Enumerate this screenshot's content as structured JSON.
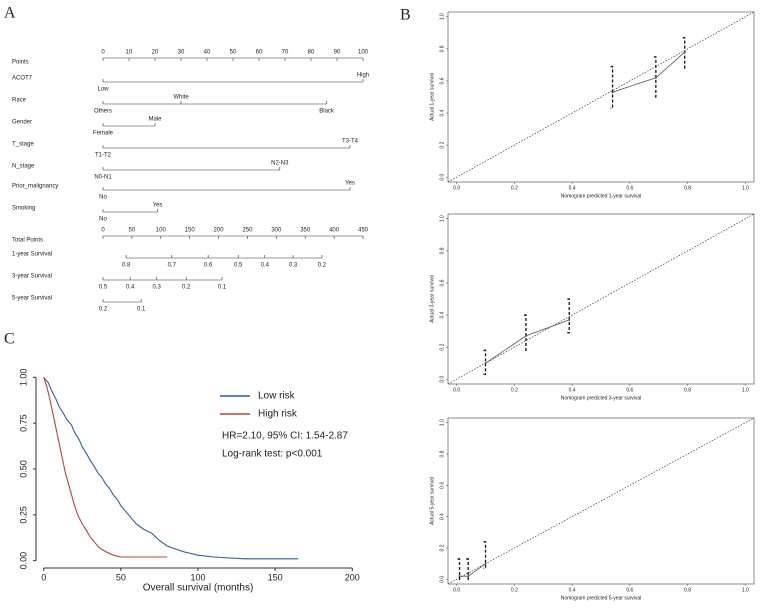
{
  "chart_data": [
    {
      "type": "nomogram",
      "panel": "A",
      "points_axis": {
        "name": "Points",
        "lim": [
          0,
          100
        ],
        "ticks": [
          0,
          10,
          20,
          30,
          40,
          50,
          60,
          70,
          80,
          90,
          100
        ]
      },
      "total_axis": {
        "name": "Total Points",
        "lim": [
          0,
          450
        ],
        "ticks": [
          0,
          50,
          100,
          150,
          200,
          250,
          300,
          350,
          400,
          450
        ]
      },
      "rows": [
        {
          "name": "ACOT7",
          "axis": "points",
          "ticks": [
            {
              "value": 0,
              "label": "Low"
            },
            {
              "value": 100,
              "label": "High"
            }
          ]
        },
        {
          "name": "Race",
          "axis": "points",
          "ticks": [
            {
              "value": 0,
              "label": "Others"
            },
            {
              "value": 30,
              "label": "White"
            },
            {
              "value": 86,
              "label": "Black"
            }
          ]
        },
        {
          "name": "Gender",
          "axis": "points",
          "ticks": [
            {
              "value": 0,
              "label": "Female"
            },
            {
              "value": 20,
              "label": "Male"
            }
          ]
        },
        {
          "name": "T_stage",
          "axis": "points",
          "ticks": [
            {
              "value": 0,
              "label": "T1-T2"
            },
            {
              "value": 95,
              "label": "T3-T4"
            }
          ]
        },
        {
          "name": "N_stage",
          "axis": "points",
          "ticks": [
            {
              "value": 0,
              "label": "N0-N1"
            },
            {
              "value": 68,
              "label": "N2-N3"
            }
          ]
        },
        {
          "name": "Prior_malignancy",
          "axis": "points",
          "ticks": [
            {
              "value": 0,
              "label": "No"
            },
            {
              "value": 95,
              "label": "Yes"
            }
          ]
        },
        {
          "name": "Smoking",
          "axis": "points",
          "ticks": [
            {
              "value": 0,
              "label": "No"
            },
            {
              "value": 21,
              "label": "Yes"
            }
          ]
        },
        {
          "name": "1-year Survival",
          "axis": "total",
          "ticks": [
            {
              "value": 40,
              "label": "0.8"
            },
            {
              "value": 119,
              "label": "0.7"
            },
            {
              "value": 182,
              "label": "0.6"
            },
            {
              "value": 234,
              "label": "0.5"
            },
            {
              "value": 280,
              "label": "0.4"
            },
            {
              "value": 329,
              "label": "0.3"
            },
            {
              "value": 379,
              "label": "0.2"
            }
          ]
        },
        {
          "name": "3-year Survival",
          "axis": "total",
          "ticks": [
            {
              "value": 0,
              "label": "0.5"
            },
            {
              "value": 47,
              "label": "0.4"
            },
            {
              "value": 93,
              "label": "0.3"
            },
            {
              "value": 144,
              "label": "0.2"
            },
            {
              "value": 206,
              "label": "0.1"
            }
          ]
        },
        {
          "name": "5-year Survival",
          "axis": "total",
          "ticks": [
            {
              "value": 0,
              "label": "0.2"
            },
            {
              "value": 66,
              "label": "0.1"
            }
          ]
        }
      ]
    },
    {
      "type": "calibration",
      "panel": "B",
      "x_label": "Nomogram predicted 1-year survival",
      "y_label": "Actual 1-year survival",
      "xlim": [
        -0.03,
        1.03
      ],
      "ylim": [
        -0.03,
        1.03
      ],
      "xticks": [
        {
          "value": 0,
          "label": "0.0"
        },
        {
          "value": 0.2,
          "label": "0.2"
        },
        {
          "value": 0.4,
          "label": "0.4"
        },
        {
          "value": 0.6,
          "label": "0.6"
        },
        {
          "value": 0.8,
          "label": "0.8"
        },
        {
          "value": 1,
          "label": "1.0"
        }
      ],
      "yticks": [
        {
          "value": 0,
          "label": "0.0"
        },
        {
          "value": 0.2,
          "label": "0.2"
        },
        {
          "value": 0.4,
          "label": "0.4"
        },
        {
          "value": 0.6,
          "label": "0.6"
        },
        {
          "value": 0.8,
          "label": "0.8"
        },
        {
          "value": 1,
          "label": "1.0"
        }
      ],
      "x": [
        0.54,
        0.69,
        0.79
      ],
      "values": [
        0.53,
        0.62,
        0.78
      ],
      "lower": [
        0.43,
        0.5,
        0.68
      ],
      "upper": [
        0.69,
        0.75,
        0.87
      ],
      "color": "#555555"
    },
    {
      "type": "calibration",
      "x_label": "Nomogram predicted 3-year survival",
      "y_label": "Actual 3-year survival",
      "xlim": [
        -0.03,
        1.03
      ],
      "ylim": [
        -0.03,
        1.03
      ],
      "xticks": [
        {
          "value": 0,
          "label": "0.0"
        },
        {
          "value": 0.2,
          "label": "0.2"
        },
        {
          "value": 0.4,
          "label": "0.4"
        },
        {
          "value": 0.6,
          "label": "0.6"
        },
        {
          "value": 0.8,
          "label": "0.8"
        },
        {
          "value": 1,
          "label": "1.0"
        }
      ],
      "yticks": [
        {
          "value": 0,
          "label": "0.0"
        },
        {
          "value": 0.2,
          "label": "0.2"
        },
        {
          "value": 0.4,
          "label": "0.4"
        },
        {
          "value": 0.6,
          "label": "0.6"
        },
        {
          "value": 0.8,
          "label": "0.8"
        },
        {
          "value": 1,
          "label": "1.0"
        }
      ],
      "x": [
        0.1,
        0.24,
        0.39
      ],
      "values": [
        0.1,
        0.27,
        0.37
      ],
      "lower": [
        0.03,
        0.18,
        0.29
      ],
      "upper": [
        0.18,
        0.4,
        0.5
      ],
      "color": "#555555"
    },
    {
      "type": "calibration",
      "x_label": "Nomogram predicted 5-year survival",
      "y_label": "Actual 5-year survival",
      "xlim": [
        -0.03,
        1.03
      ],
      "ylim": [
        -0.03,
        1.03
      ],
      "xticks": [
        {
          "value": 0,
          "label": "0.0"
        },
        {
          "value": 0.2,
          "label": "0.2"
        },
        {
          "value": 0.4,
          "label": "0.4"
        },
        {
          "value": 0.6,
          "label": "0.6"
        },
        {
          "value": 0.8,
          "label": "0.8"
        },
        {
          "value": 1,
          "label": "1.0"
        }
      ],
      "yticks": [
        {
          "value": 0,
          "label": "0.0"
        },
        {
          "value": 0.2,
          "label": "0.2"
        },
        {
          "value": 0.4,
          "label": "0.4"
        },
        {
          "value": 0.6,
          "label": "0.6"
        },
        {
          "value": 0.8,
          "label": "0.8"
        },
        {
          "value": 1,
          "label": "1.0"
        }
      ],
      "x": [
        0.01,
        0.04,
        0.1
      ],
      "values": [
        0.02,
        0.02,
        0.1
      ],
      "lower": [
        0,
        0,
        0.07
      ],
      "upper": [
        0.13,
        0.13,
        0.24
      ],
      "color": "#555555"
    },
    {
      "type": "line",
      "panel": "C",
      "x_label": "Overall survival (months)",
      "xlim": [
        -5,
        205
      ],
      "ylim": [
        -0.04,
        1.04
      ],
      "xticks": [
        0,
        50,
        100,
        150,
        200
      ],
      "yticks": [
        {
          "value": 0,
          "label": "0.00"
        },
        {
          "value": 0.25,
          "label": "0.25"
        },
        {
          "value": 0.5,
          "label": "0.50"
        },
        {
          "value": 0.75,
          "label": "0.75"
        },
        {
          "value": 1,
          "label": "1.00"
        }
      ],
      "series": [
        {
          "name": "Low risk",
          "color": "#2f5f9a",
          "x": [
            0,
            3,
            5,
            8,
            10,
            13,
            15,
            18,
            20,
            23,
            25,
            28,
            30,
            33,
            35,
            38,
            40,
            43,
            45,
            48,
            50,
            53,
            55,
            58,
            60,
            65,
            70,
            75,
            80,
            90,
            100,
            110,
            130,
            165
          ],
          "values": [
            1,
            0.97,
            0.93,
            0.88,
            0.84,
            0.8,
            0.77,
            0.74,
            0.7,
            0.66,
            0.62,
            0.58,
            0.55,
            0.51,
            0.48,
            0.45,
            0.42,
            0.39,
            0.36,
            0.33,
            0.3,
            0.27,
            0.25,
            0.22,
            0.2,
            0.17,
            0.15,
            0.11,
            0.08,
            0.05,
            0.03,
            0.02,
            0.01,
            0.01
          ]
        },
        {
          "name": "High risk",
          "color": "#b5453c",
          "x": [
            0,
            2,
            4,
            6,
            8,
            10,
            12,
            14,
            16,
            18,
            20,
            22,
            25,
            28,
            30,
            33,
            36,
            40,
            45,
            50,
            80
          ],
          "values": [
            1,
            0.95,
            0.88,
            0.8,
            0.72,
            0.64,
            0.56,
            0.48,
            0.42,
            0.36,
            0.3,
            0.25,
            0.2,
            0.16,
            0.13,
            0.1,
            0.07,
            0.05,
            0.03,
            0.02,
            0.02
          ]
        }
      ],
      "annotations": [
        "HR=2.10, 95% CI: 1.54-2.87",
        "Log-rank test: p<0.001"
      ]
    }
  ]
}
